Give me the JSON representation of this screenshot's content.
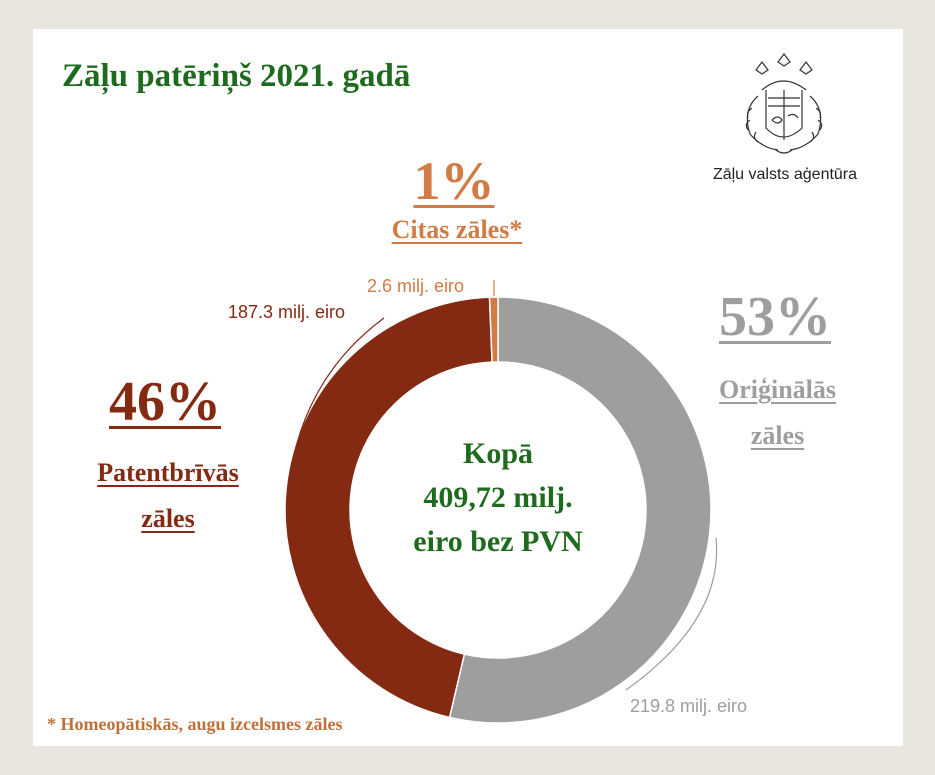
{
  "title": "Zāļu patēriņš 2021. gadā",
  "logo": {
    "text": "Zāļu valsts aģentūra"
  },
  "center": {
    "line1": "Kopā",
    "line2": "409,72 milj.",
    "line3": "eiro bez PVN"
  },
  "footnote": "* Homeopātiskās, augu izcelsmes zāles",
  "colors": {
    "original": "#9e9e9e",
    "generic": "#842912",
    "other": "#d27b45",
    "title_green": "#1e6b1e"
  },
  "chart_data": {
    "type": "pie",
    "title": "Zāļu patēriņš 2021. gadā",
    "slices": [
      {
        "name": "Oriģinālās zāles",
        "percent_label": "53%",
        "value": 219.8,
        "value_label": "219.8 milj. eiro"
      },
      {
        "name": "Patentbrīvās zāles",
        "percent_label": "46%",
        "value": 187.3,
        "value_label": "187.3 milj. eiro"
      },
      {
        "name": "Citas zāles*",
        "percent_label": "1%",
        "value": 2.6,
        "value_label": "2.6 milj. eiro"
      }
    ],
    "total_label": "Kopā 409,72 milj. eiro bez PVN",
    "labels": {
      "original": {
        "pct": "53%",
        "line1": "Oriģinālās ",
        "line2": "zāles"
      },
      "generic": {
        "pct": "46%",
        "line1": "Patentbrīvās ",
        "line2": "zāles"
      },
      "other": {
        "pct": "1%",
        "line1": "Citas zāles*"
      }
    }
  }
}
